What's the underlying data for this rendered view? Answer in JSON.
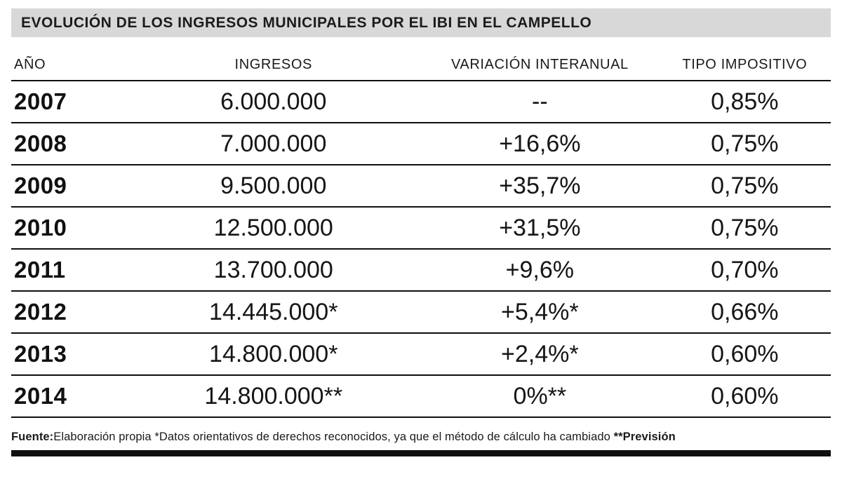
{
  "title": "EVOLUCIÓN DE LOS INGRESOS MUNICIPALES POR EL IBI EN EL CAMPELLO",
  "footer": {
    "fuente_label": "Fuente:",
    "fuente_text": "Elaboración propia ",
    "note_asterisk": "*Datos orientativos de derechos reconocidos, ya que el método de cálculo ha cambiado ",
    "note_double_asterisk": "**Previsión"
  },
  "colors": {
    "title_bar_background": "#d8d8d8",
    "rule_lines": "#0f0f0f",
    "text": "#111111"
  },
  "chart_data": {
    "type": "table",
    "title": "EVOLUCIÓN DE LOS INGRESOS MUNICIPALES POR EL IBI EN EL CAMPELLO",
    "columns": [
      "AÑO",
      "INGRESOS",
      "VARIACIÓN INTERANUAL",
      "TIPO IMPOSITIVO"
    ],
    "rows": [
      [
        "2007",
        "6.000.000",
        "--",
        "0,85%"
      ],
      [
        "2008",
        "7.000.000",
        "+16,6%",
        "0,75%"
      ],
      [
        "2009",
        "9.500.000",
        "+35,7%",
        "0,75%"
      ],
      [
        "2010",
        "12.500.000",
        "+31,5%",
        "0,75%"
      ],
      [
        "2011",
        "13.700.000",
        "+9,6%",
        "0,70%"
      ],
      [
        "2012",
        "14.445.000*",
        "+5,4%*",
        "0,66%"
      ],
      [
        "2013",
        "14.800.000*",
        "+2,4%*",
        "0,60%"
      ],
      [
        "2014",
        "14.800.000**",
        "0%**",
        "0,60%"
      ]
    ],
    "notes": "Fuente: Elaboración propia. *Datos orientativos de derechos reconocidos, ya que el método de cálculo ha cambiado. **Previsión"
  }
}
